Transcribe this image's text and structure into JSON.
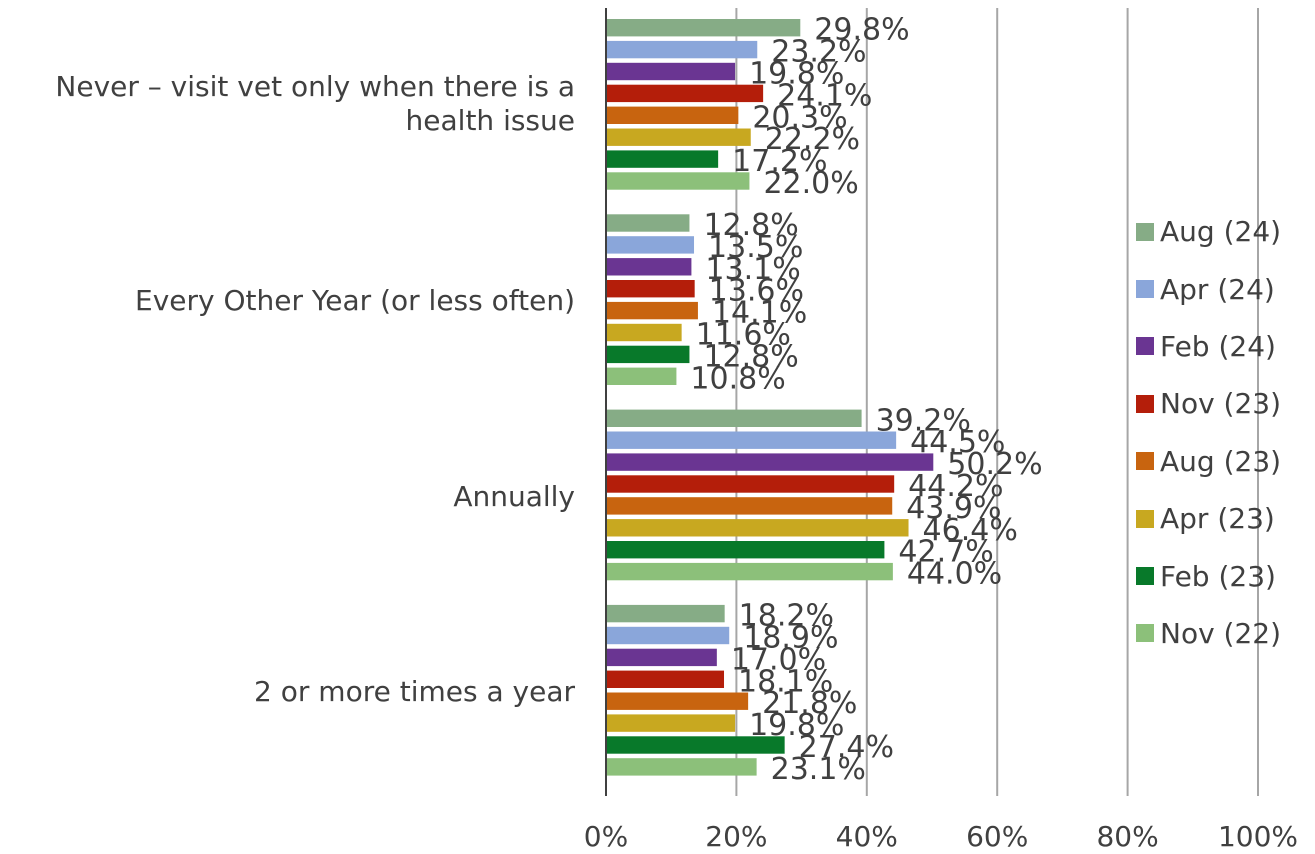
{
  "chart_data": {
    "type": "bar",
    "orientation": "horizontal",
    "categories": [
      "Never – visit vet only when there is a health issue",
      "Every Other Year (or less often)",
      "Annually",
      "2 or more times a year"
    ],
    "series": [
      {
        "name": "Aug (24)",
        "color": "#86AC86",
        "values": [
          29.8,
          12.8,
          39.2,
          18.2
        ]
      },
      {
        "name": "Apr (24)",
        "color": "#8AA6DA",
        "values": [
          23.2,
          13.5,
          44.5,
          18.9
        ]
      },
      {
        "name": "Feb (24)",
        "color": "#6A3592",
        "values": [
          19.8,
          13.1,
          50.2,
          17.0
        ]
      },
      {
        "name": "Nov (23)",
        "color": "#B41E0A",
        "values": [
          24.1,
          13.6,
          44.2,
          18.1
        ]
      },
      {
        "name": "Aug (23)",
        "color": "#C8640F",
        "values": [
          20.3,
          14.1,
          43.9,
          21.8
        ]
      },
      {
        "name": "Apr (23)",
        "color": "#C8A820",
        "values": [
          22.2,
          11.6,
          46.4,
          19.8
        ]
      },
      {
        "name": "Feb (23)",
        "color": "#08792A",
        "values": [
          17.2,
          12.8,
          42.7,
          27.4
        ]
      },
      {
        "name": "Nov (22)",
        "color": "#8CC07A",
        "values": [
          22.0,
          10.8,
          44.0,
          23.1
        ]
      }
    ],
    "xlim": [
      0,
      100
    ],
    "x_ticks": [
      "0%",
      "20%",
      "40%",
      "60%",
      "80%",
      "100%"
    ],
    "value_suffix": "%",
    "grid": "vertical",
    "legend_position": "right"
  }
}
